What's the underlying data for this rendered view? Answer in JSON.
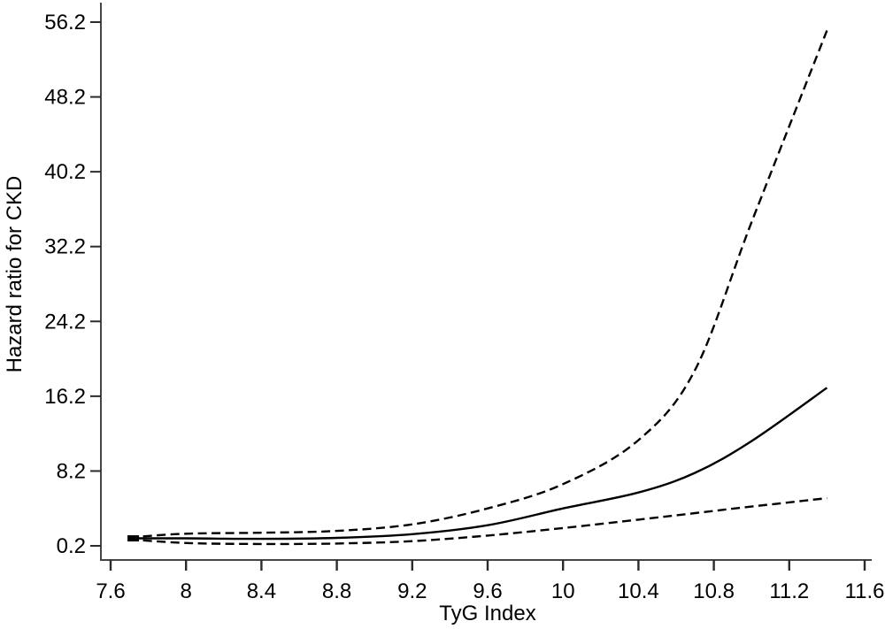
{
  "chart_data": {
    "type": "line",
    "title": "",
    "xlabel": "TyG Index",
    "ylabel": "Hazard ratio for CKD",
    "x_range": [
      7.6,
      11.6
    ],
    "y_range": [
      0.2,
      56.2
    ],
    "x_ticks": {
      "values": [
        7.6,
        8,
        8.4,
        8.8,
        9.2,
        9.6,
        10,
        10.4,
        10.8,
        11.2,
        11.6
      ],
      "labels": [
        "7.6",
        "8",
        "8.4",
        "8.8",
        "9.2",
        "9.6",
        "10",
        "10.4",
        "10.8",
        "11.2",
        "11.6"
      ]
    },
    "y_ticks": {
      "values": [
        0.2,
        8.2,
        16.2,
        24.2,
        32.2,
        40.2,
        48.2,
        56.2
      ],
      "labels": [
        "0.2",
        "8.2",
        "16.2",
        "24.2",
        "32.2",
        "40.2",
        "48.2",
        "56.2"
      ]
    },
    "grid": false,
    "legend_position": "none",
    "colors": {
      "line": "#000000",
      "axis": "#454545",
      "tick": "#2b2b2b",
      "text": "#000000",
      "background": "#ffffff"
    },
    "series": [
      {
        "name": "hazard-ratio-estimate",
        "style": "solid",
        "x": [
          7.7,
          8.0,
          8.4,
          8.8,
          9.2,
          9.6,
          10.0,
          10.4,
          10.7,
          11.0,
          11.4
        ],
        "y": [
          1.0,
          1.0,
          0.95,
          1.05,
          1.45,
          2.4,
          4.2,
          5.9,
          8.0,
          11.4,
          17.1
        ]
      },
      {
        "name": "ci-upper-bound",
        "style": "dashed",
        "x": [
          7.7,
          8.0,
          8.4,
          8.8,
          9.2,
          9.6,
          10.0,
          10.4,
          10.7,
          11.0,
          11.4
        ],
        "y": [
          1.1,
          1.5,
          1.6,
          1.8,
          2.5,
          4.2,
          6.8,
          11.5,
          19.0,
          34.8,
          55.3
        ]
      },
      {
        "name": "ci-lower-bound",
        "style": "dashed",
        "x": [
          7.7,
          8.0,
          8.4,
          8.8,
          9.2,
          9.6,
          10.0,
          10.4,
          10.7,
          11.0,
          11.4
        ],
        "y": [
          0.9,
          0.5,
          0.4,
          0.45,
          0.7,
          1.3,
          2.1,
          3.0,
          3.7,
          4.4,
          5.3
        ]
      }
    ],
    "reference_marker": {
      "x": 7.72,
      "y": 1.0
    }
  }
}
